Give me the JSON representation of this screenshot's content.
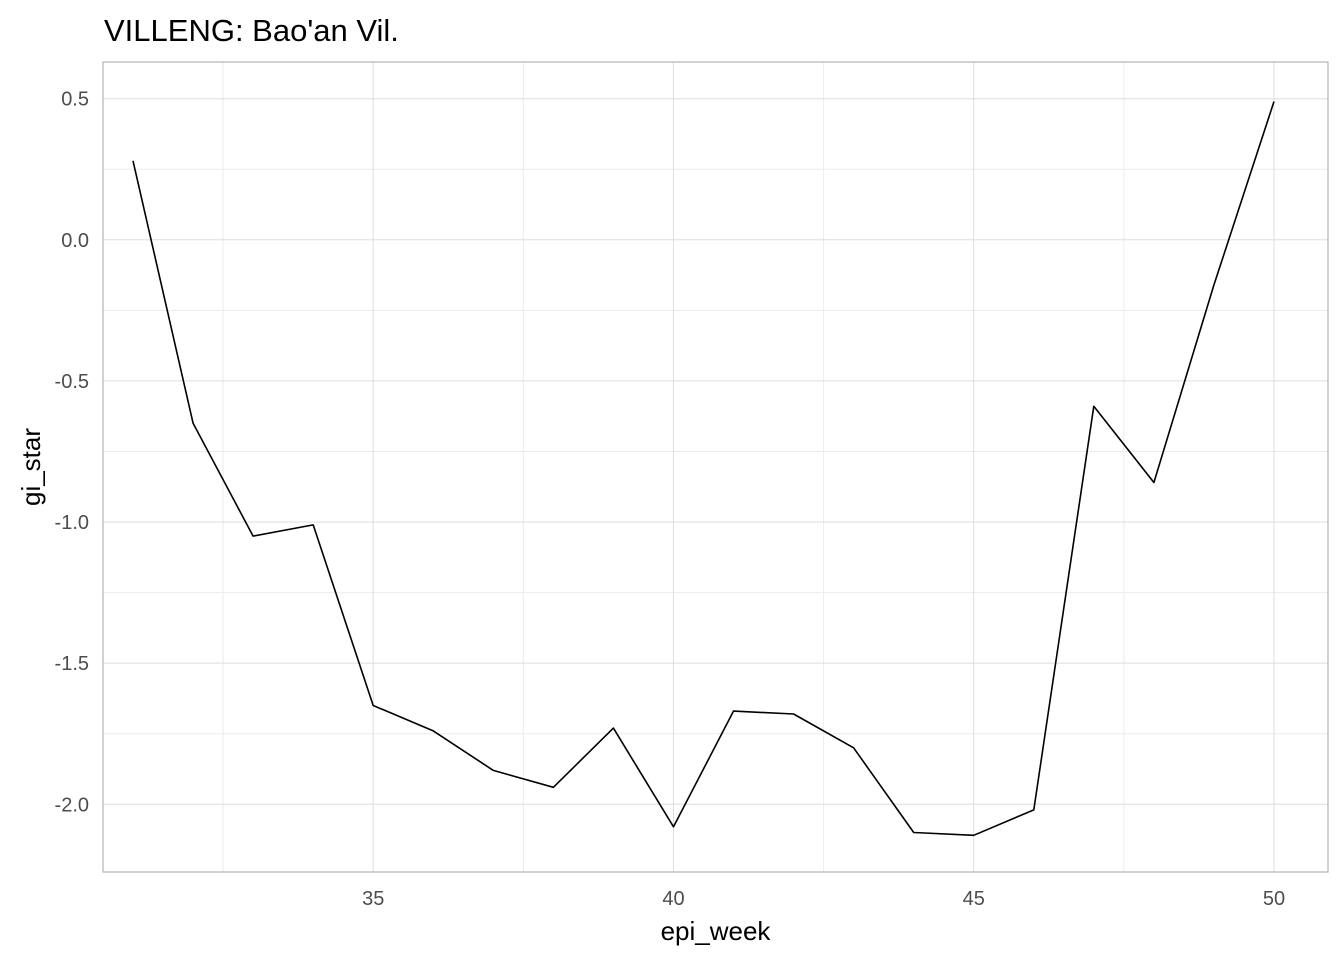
{
  "chart_data": {
    "type": "line",
    "title": "VILLENG: Bao'an Vil.",
    "xlabel": "epi_week",
    "ylabel": "gi_star",
    "xlim": [
      30.5,
      50.9
    ],
    "ylim": [
      -2.24,
      0.63
    ],
    "x_ticks": [
      35,
      40,
      45,
      50
    ],
    "x_tick_labels": [
      "35",
      "40",
      "45",
      "50"
    ],
    "y_ticks": [
      0.5,
      0.0,
      -0.5,
      -1.0,
      -1.5,
      -2.0
    ],
    "y_tick_labels": [
      "0.5",
      "0.0",
      "-0.5",
      "-1.0",
      "-1.5",
      "-2.0"
    ],
    "grid": true,
    "series": [
      {
        "color": "#000000",
        "x": [
          31,
          32,
          33,
          34,
          35,
          36,
          37,
          38,
          39,
          40,
          41,
          42,
          43,
          44,
          45,
          46,
          47,
          48,
          49,
          50
        ],
        "y": [
          0.28,
          -0.65,
          -1.05,
          -1.01,
          -1.65,
          -1.74,
          -1.88,
          -1.94,
          -1.73,
          -2.08,
          -1.67,
          -1.68,
          -1.8,
          -2.1,
          -2.11,
          -2.02,
          -0.59,
          -0.86,
          -0.16,
          0.49
        ]
      }
    ]
  }
}
